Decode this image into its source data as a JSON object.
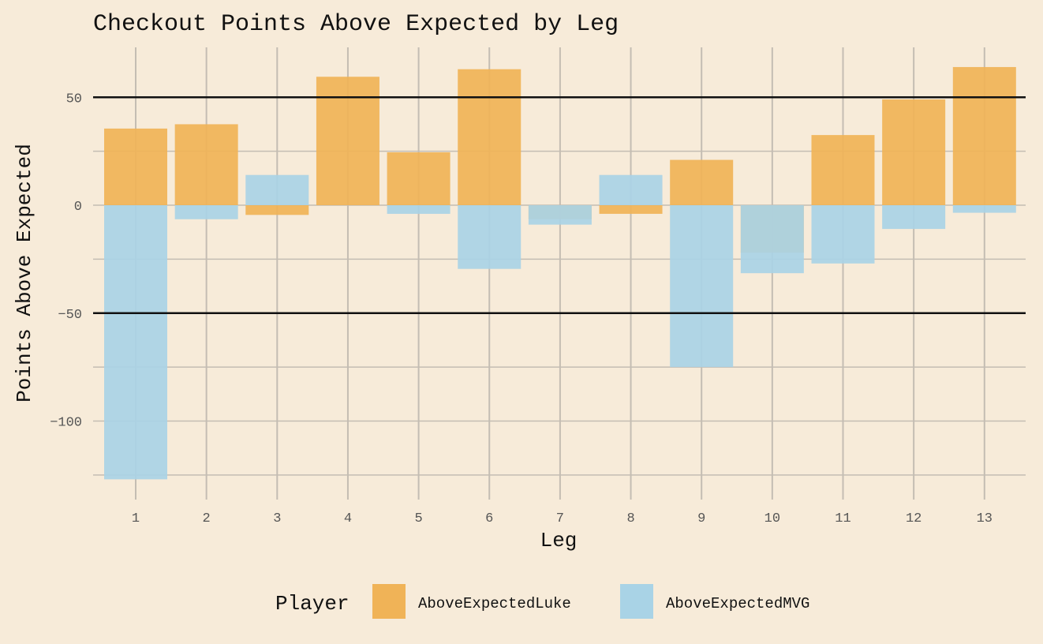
{
  "chart_data": {
    "type": "bar",
    "title": "Checkout Points Above Expected by Leg",
    "xlabel": "Leg",
    "ylabel": "Points Above Expected",
    "categories": [
      "1",
      "2",
      "3",
      "4",
      "5",
      "6",
      "7",
      "8",
      "9",
      "10",
      "11",
      "12",
      "13"
    ],
    "series": [
      {
        "name": "AboveExpectedLuke",
        "color": "#f0b357",
        "values": [
          35.5,
          37.5,
          -4.5,
          59.5,
          24.5,
          63,
          -6.5,
          -4,
          21,
          -22,
          32.5,
          49,
          64
        ]
      },
      {
        "name": "AboveExpectedMVG",
        "color": "#a9d3e6",
        "values": [
          -127,
          -6.5,
          14,
          0,
          -4,
          -29.5,
          -9,
          14,
          -75,
          -31.5,
          -27,
          -11,
          -3.5
        ]
      }
    ],
    "ylim": [
      -130,
      72
    ],
    "yticks": [
      -100,
      -50,
      0,
      50
    ],
    "reference_lines": [
      50,
      -50
    ],
    "grid": true,
    "legend_position": "bottom",
    "legend_title": "Player",
    "bar_mode": "overlay"
  }
}
